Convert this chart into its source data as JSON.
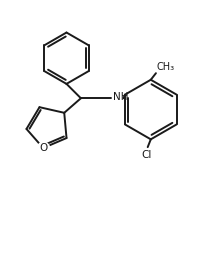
{
  "bg_color": "#ffffff",
  "line_color": "#1a1a1a",
  "line_width": 1.4,
  "font_size": 7.5,
  "fig_width": 2.07,
  "fig_height": 2.54,
  "dpi": 100,
  "xlim": [
    0,
    10
  ],
  "ylim": [
    0,
    12.3
  ]
}
